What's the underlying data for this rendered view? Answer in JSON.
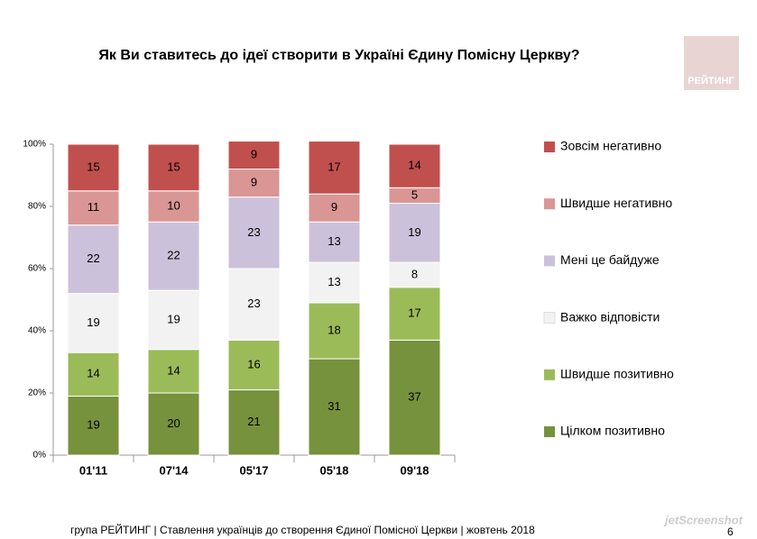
{
  "chart_data": {
    "type": "stacked_bar",
    "title": "Як Ви ставитесь до ідеї створити в Україні Єдину Помісну Церкву?",
    "logo": "РЕЙТИНГ",
    "footer": "група РЕЙТИНГ | Ставлення українців до створення Єдиної Помісної Церкви | жовтень 2018",
    "page_number": 6,
    "watermark": "jetScreenshot",
    "categories": [
      "01'11",
      "07'14",
      "05'17",
      "05'18",
      "09'18"
    ],
    "series": [
      {
        "name": "Цілком позитивно",
        "color": "#76923c",
        "values": [
          19,
          20,
          21,
          31,
          37
        ]
      },
      {
        "name": "Швидше позитивно",
        "color": "#9bbb59",
        "values": [
          14,
          14,
          16,
          18,
          17
        ]
      },
      {
        "name": "Важко відповісти",
        "color": "#f2f2f2",
        "values": [
          19,
          19,
          23,
          13,
          8
        ]
      },
      {
        "name": "Мені це байдуже",
        "color": "#ccc1da",
        "values": [
          22,
          22,
          23,
          13,
          19
        ]
      },
      {
        "name": "Швидше негативно",
        "color": "#d99694",
        "values": [
          11,
          10,
          9,
          9,
          5
        ]
      },
      {
        "name": "Зовсім негативно",
        "color": "#c0504d",
        "values": [
          15,
          15,
          9,
          17,
          14
        ]
      }
    ],
    "ylim": [
      0,
      100
    ],
    "yticks": [
      {
        "value": 0,
        "label": "0%"
      },
      {
        "value": 20,
        "label": "20%"
      },
      {
        "value": 40,
        "label": "40%"
      },
      {
        "value": 60,
        "label": "60%"
      },
      {
        "value": 80,
        "label": "80%"
      },
      {
        "value": 100,
        "label": "100%"
      }
    ]
  }
}
